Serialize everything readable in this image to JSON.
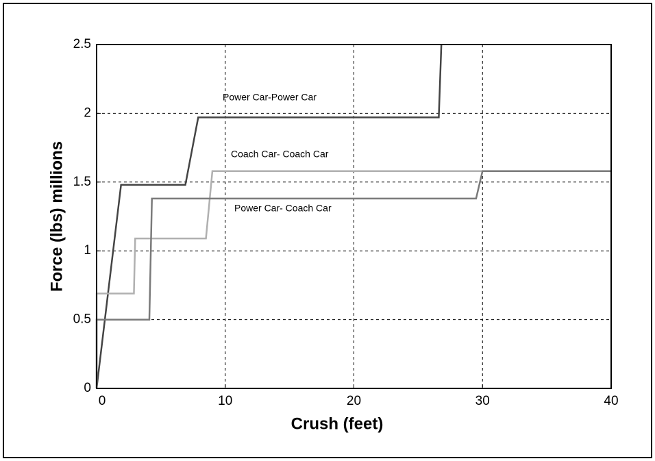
{
  "chart_data": {
    "type": "line",
    "xlabel": "Crush (feet)",
    "ylabel": "Force (lbs) millions",
    "xlim": [
      0,
      40
    ],
    "xticks": [
      0,
      10,
      20,
      30,
      40
    ],
    "ylim": [
      0,
      2.5
    ],
    "yticks": [
      0,
      0.5,
      1,
      1.5,
      2,
      2.5
    ],
    "grid": true,
    "series": [
      {
        "name": "Power Car-Power Car",
        "color": "#444444",
        "x": [
          0,
          1.9,
          6.9,
          7.9,
          26.6,
          26.8
        ],
        "values": [
          0,
          1.48,
          1.48,
          1.97,
          1.97,
          2.5
        ]
      },
      {
        "name": "Coach Car- Coach Car",
        "color": "#b0b0b0",
        "x": [
          0,
          0,
          2.9,
          3.0,
          8.5,
          9.0,
          40
        ],
        "values": [
          0,
          0.69,
          0.69,
          1.09,
          1.09,
          1.58,
          1.58
        ]
      },
      {
        "name": "Power Car- Coach Car",
        "color": "#7a7a7a",
        "x": [
          0,
          0,
          4.1,
          4.3,
          29.5,
          30.0,
          40
        ],
        "values": [
          0,
          0.5,
          0.5,
          1.38,
          1.38,
          1.58,
          1.58
        ]
      }
    ]
  }
}
